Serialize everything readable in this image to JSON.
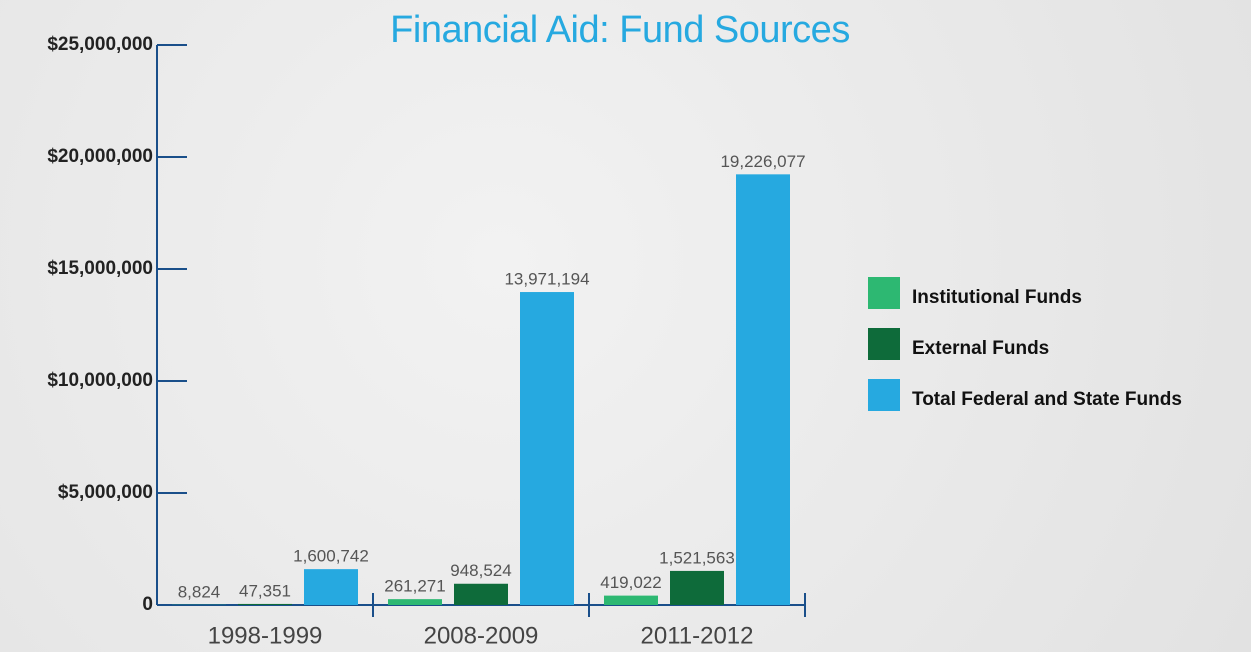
{
  "chart_data": {
    "type": "bar",
    "title": "Financial Aid: Fund Sources",
    "categories": [
      "1998-1999",
      "2008-2009",
      "2011-2012"
    ],
    "series": [
      {
        "name": "Institutional Funds",
        "color": "#2db872",
        "values": [
          8824,
          261271,
          419022
        ],
        "value_labels": [
          "8,824",
          "261,271",
          "419,022"
        ]
      },
      {
        "name": "External Funds",
        "color": "#0e6b3a",
        "values": [
          47351,
          948524,
          1521563
        ],
        "value_labels": [
          "47,351",
          "948,524",
          "1,521,563"
        ]
      },
      {
        "name": "Total Federal and State Funds",
        "color": "#26a9e0",
        "values": [
          1600742,
          13971194,
          19226077
        ],
        "value_labels": [
          "1,600,742",
          "13,971,194",
          "19,226,077"
        ]
      }
    ],
    "ylim": [
      0,
      25000000
    ],
    "yticks": [
      0,
      {
        "value": 5000000,
        "label": "$5,000,000"
      },
      {
        "value": 10000000,
        "label": "$10,000,000"
      },
      {
        "value": 15000000,
        "label": "$15,000,000"
      },
      {
        "value": 20000000,
        "label": "$20,000,000"
      },
      {
        "value": 25000000,
        "label": "$25,000,000"
      }
    ],
    "legend": "right"
  }
}
